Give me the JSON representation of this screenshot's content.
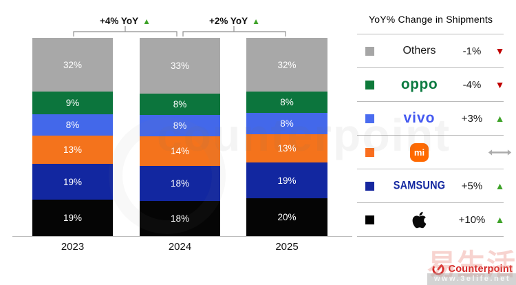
{
  "chart_data": {
    "type": "bar",
    "stacked": true,
    "title": "",
    "unit": "%",
    "categories": [
      "2023",
      "2024",
      "2025"
    ],
    "series": [
      {
        "name": "Others",
        "color": "#a8a8a8",
        "values": [
          32,
          33,
          32
        ]
      },
      {
        "name": "OPPO",
        "color": "#0c753d",
        "values": [
          9,
          8,
          8
        ]
      },
      {
        "name": "vivo",
        "color": "#4368ea",
        "values": [
          8,
          8,
          8
        ]
      },
      {
        "name": "Xiaomi",
        "color": "#f4731c",
        "values": [
          13,
          14,
          13
        ]
      },
      {
        "name": "Samsung",
        "color": "#1227a0",
        "values": [
          19,
          18,
          19
        ]
      },
      {
        "name": "Apple",
        "color": "#050505",
        "values": [
          19,
          18,
          20
        ]
      }
    ],
    "series_order": "top-to-bottom",
    "annotations": [
      {
        "label": "+4% YoY",
        "direction": "up",
        "between": [
          "2023",
          "2024"
        ]
      },
      {
        "label": "+2% YoY",
        "direction": "up",
        "between": [
          "2024",
          "2025"
        ]
      }
    ],
    "ylim": [
      0,
      100
    ],
    "grid": false,
    "legend_position": "right"
  },
  "legend": {
    "title": "YoY% Change in Shipments",
    "rows": [
      {
        "brand": "Others",
        "color": "#a6a6a6",
        "change": "-1%",
        "direction": "down"
      },
      {
        "brand": "oppo",
        "color": "#0e7a3a",
        "change": "-4%",
        "direction": "down"
      },
      {
        "brand": "vivo",
        "color": "#4a6cf0",
        "change": "+3%",
        "direction": "up"
      },
      {
        "brand": "mi",
        "color": "#fa6e1e",
        "change": "",
        "direction": "flat"
      },
      {
        "brand": "SAMSUNG",
        "color": "#16279f",
        "change": "+5%",
        "direction": "up"
      },
      {
        "brand": "Apple",
        "color": "#000000",
        "change": "+10%",
        "direction": "up"
      }
    ]
  },
  "icons": {
    "up": "▲",
    "down": "▼"
  },
  "trend_colors": {
    "up": "#3fa32a",
    "down": "#c00000",
    "flat": "#ababab"
  },
  "footer": {
    "brand": "Counterpoint"
  },
  "watermark": {
    "big_text": "counterpoint",
    "site": "www.3elife.net",
    "cn": "易生活"
  }
}
